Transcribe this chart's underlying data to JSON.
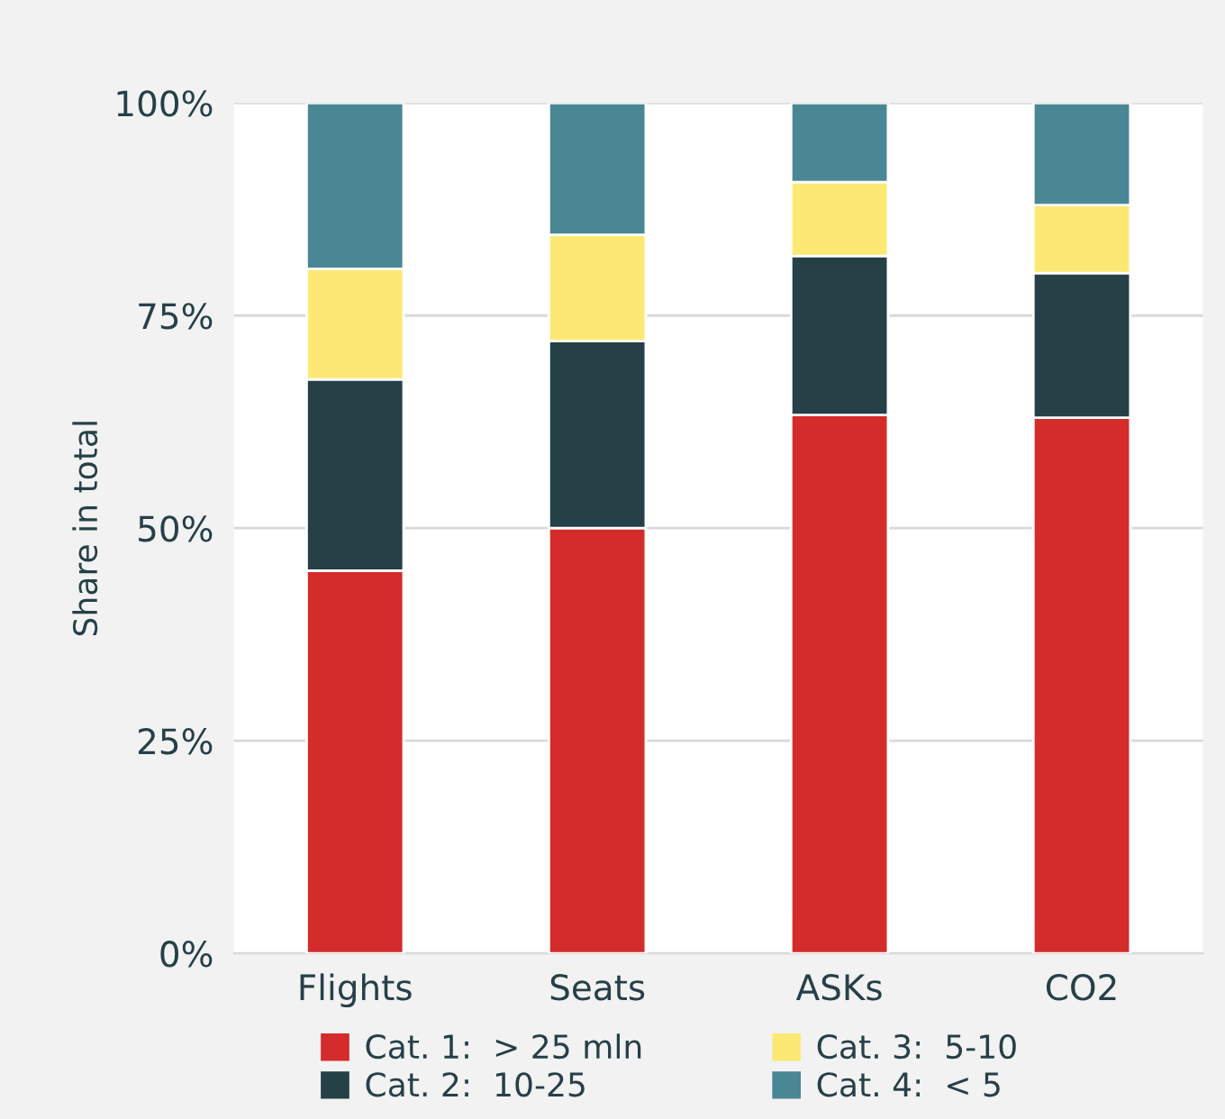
{
  "chart_data": {
    "type": "bar",
    "stacked": true,
    "ylabel": "Share in total",
    "categories": [
      "Flights",
      "Seats",
      "ASKs",
      "CO2"
    ],
    "series": [
      {
        "name": "Cat. 1:  > 25 mln",
        "color": "#d42b2b",
        "values": [
          45,
          50,
          63.3,
          63
        ]
      },
      {
        "name": "Cat. 2:  10-25",
        "color": "#264047",
        "values": [
          22.5,
          22,
          18.7,
          17
        ]
      },
      {
        "name": "Cat. 3:  5-10",
        "color": "#fce974",
        "values": [
          13,
          12.5,
          8.7,
          8
        ]
      },
      {
        "name": "Cat. 4:  < 5",
        "color": "#4a8795",
        "values": [
          19.5,
          15.5,
          9.3,
          12
        ]
      }
    ],
    "ylim": [
      0,
      100
    ],
    "yticks": [
      {
        "value": 0,
        "label": "0%"
      },
      {
        "value": 25,
        "label": "25%"
      },
      {
        "value": 50,
        "label": "50%"
      },
      {
        "value": 75,
        "label": "75%"
      },
      {
        "value": 100,
        "label": "100%"
      }
    ],
    "grid": "y",
    "legend": "bottom"
  }
}
